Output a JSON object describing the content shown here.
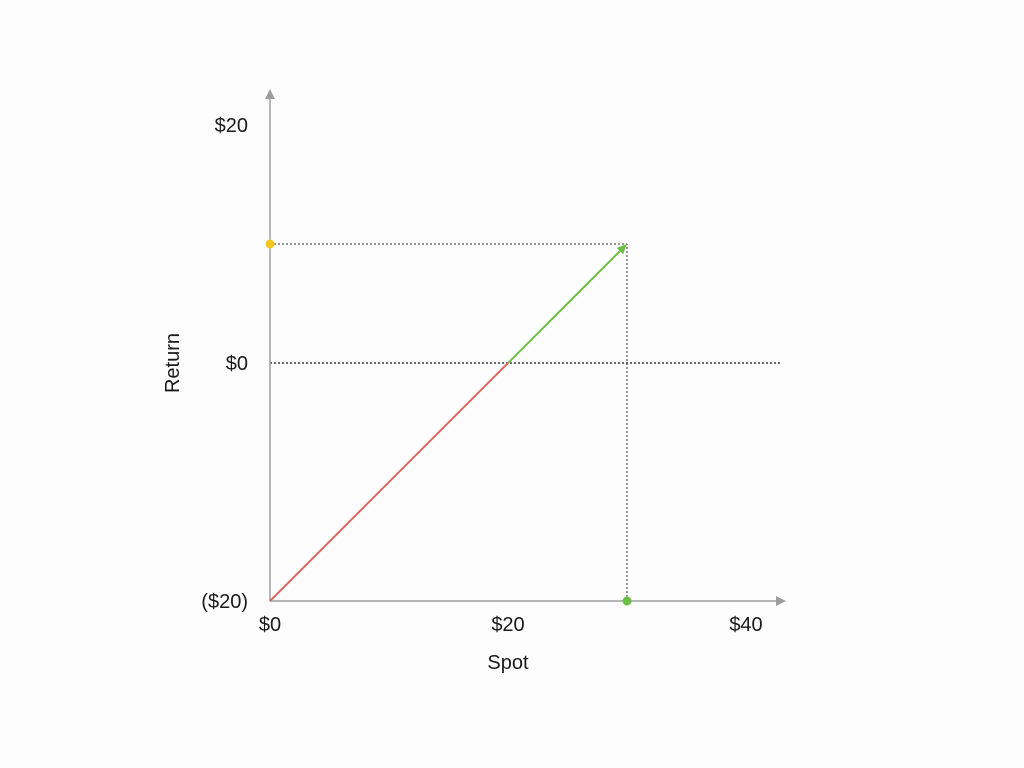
{
  "chart_data": {
    "type": "line",
    "title": "",
    "xlabel": "Spot",
    "ylabel": "Return",
    "xlim": [
      0,
      40
    ],
    "ylim": [
      -20,
      20
    ],
    "x_ticks": [
      {
        "value": 0,
        "label": "$0"
      },
      {
        "value": 20,
        "label": "$20"
      },
      {
        "value": 40,
        "label": "$40"
      }
    ],
    "y_ticks": [
      {
        "value": -20,
        "label": "($20)"
      },
      {
        "value": 0,
        "label": "$0"
      },
      {
        "value": 20,
        "label": "$20"
      }
    ],
    "grid": false,
    "legend": "none",
    "series": [
      {
        "segments": [
          {
            "x": [
              0,
              20
            ],
            "y": [
              -20,
              0
            ],
            "color": "#e06666"
          },
          {
            "x": [
              20,
              30
            ],
            "y": [
              0,
              10
            ],
            "color": "#6abf45",
            "arrow": true
          }
        ]
      }
    ],
    "reference_lines": [
      {
        "orientation": "horizontal",
        "y": 0,
        "x_range": [
          0,
          43
        ],
        "style": "dotted",
        "color": "#111111"
      },
      {
        "orientation": "horizontal",
        "y": 10,
        "x_range": [
          0,
          30
        ],
        "style": "dotted",
        "color": "#555555"
      },
      {
        "orientation": "vertical",
        "x": 30,
        "y_range": [
          -20,
          10
        ],
        "style": "dotted",
        "color": "#555555"
      }
    ],
    "markers": [
      {
        "x": 0,
        "y": 10,
        "color": "#f2c81e"
      },
      {
        "x": 30,
        "y": -20,
        "color": "#6abf45"
      }
    ],
    "colors": {
      "axis": "#9e9e9e",
      "text": "#1a1a1a"
    }
  }
}
